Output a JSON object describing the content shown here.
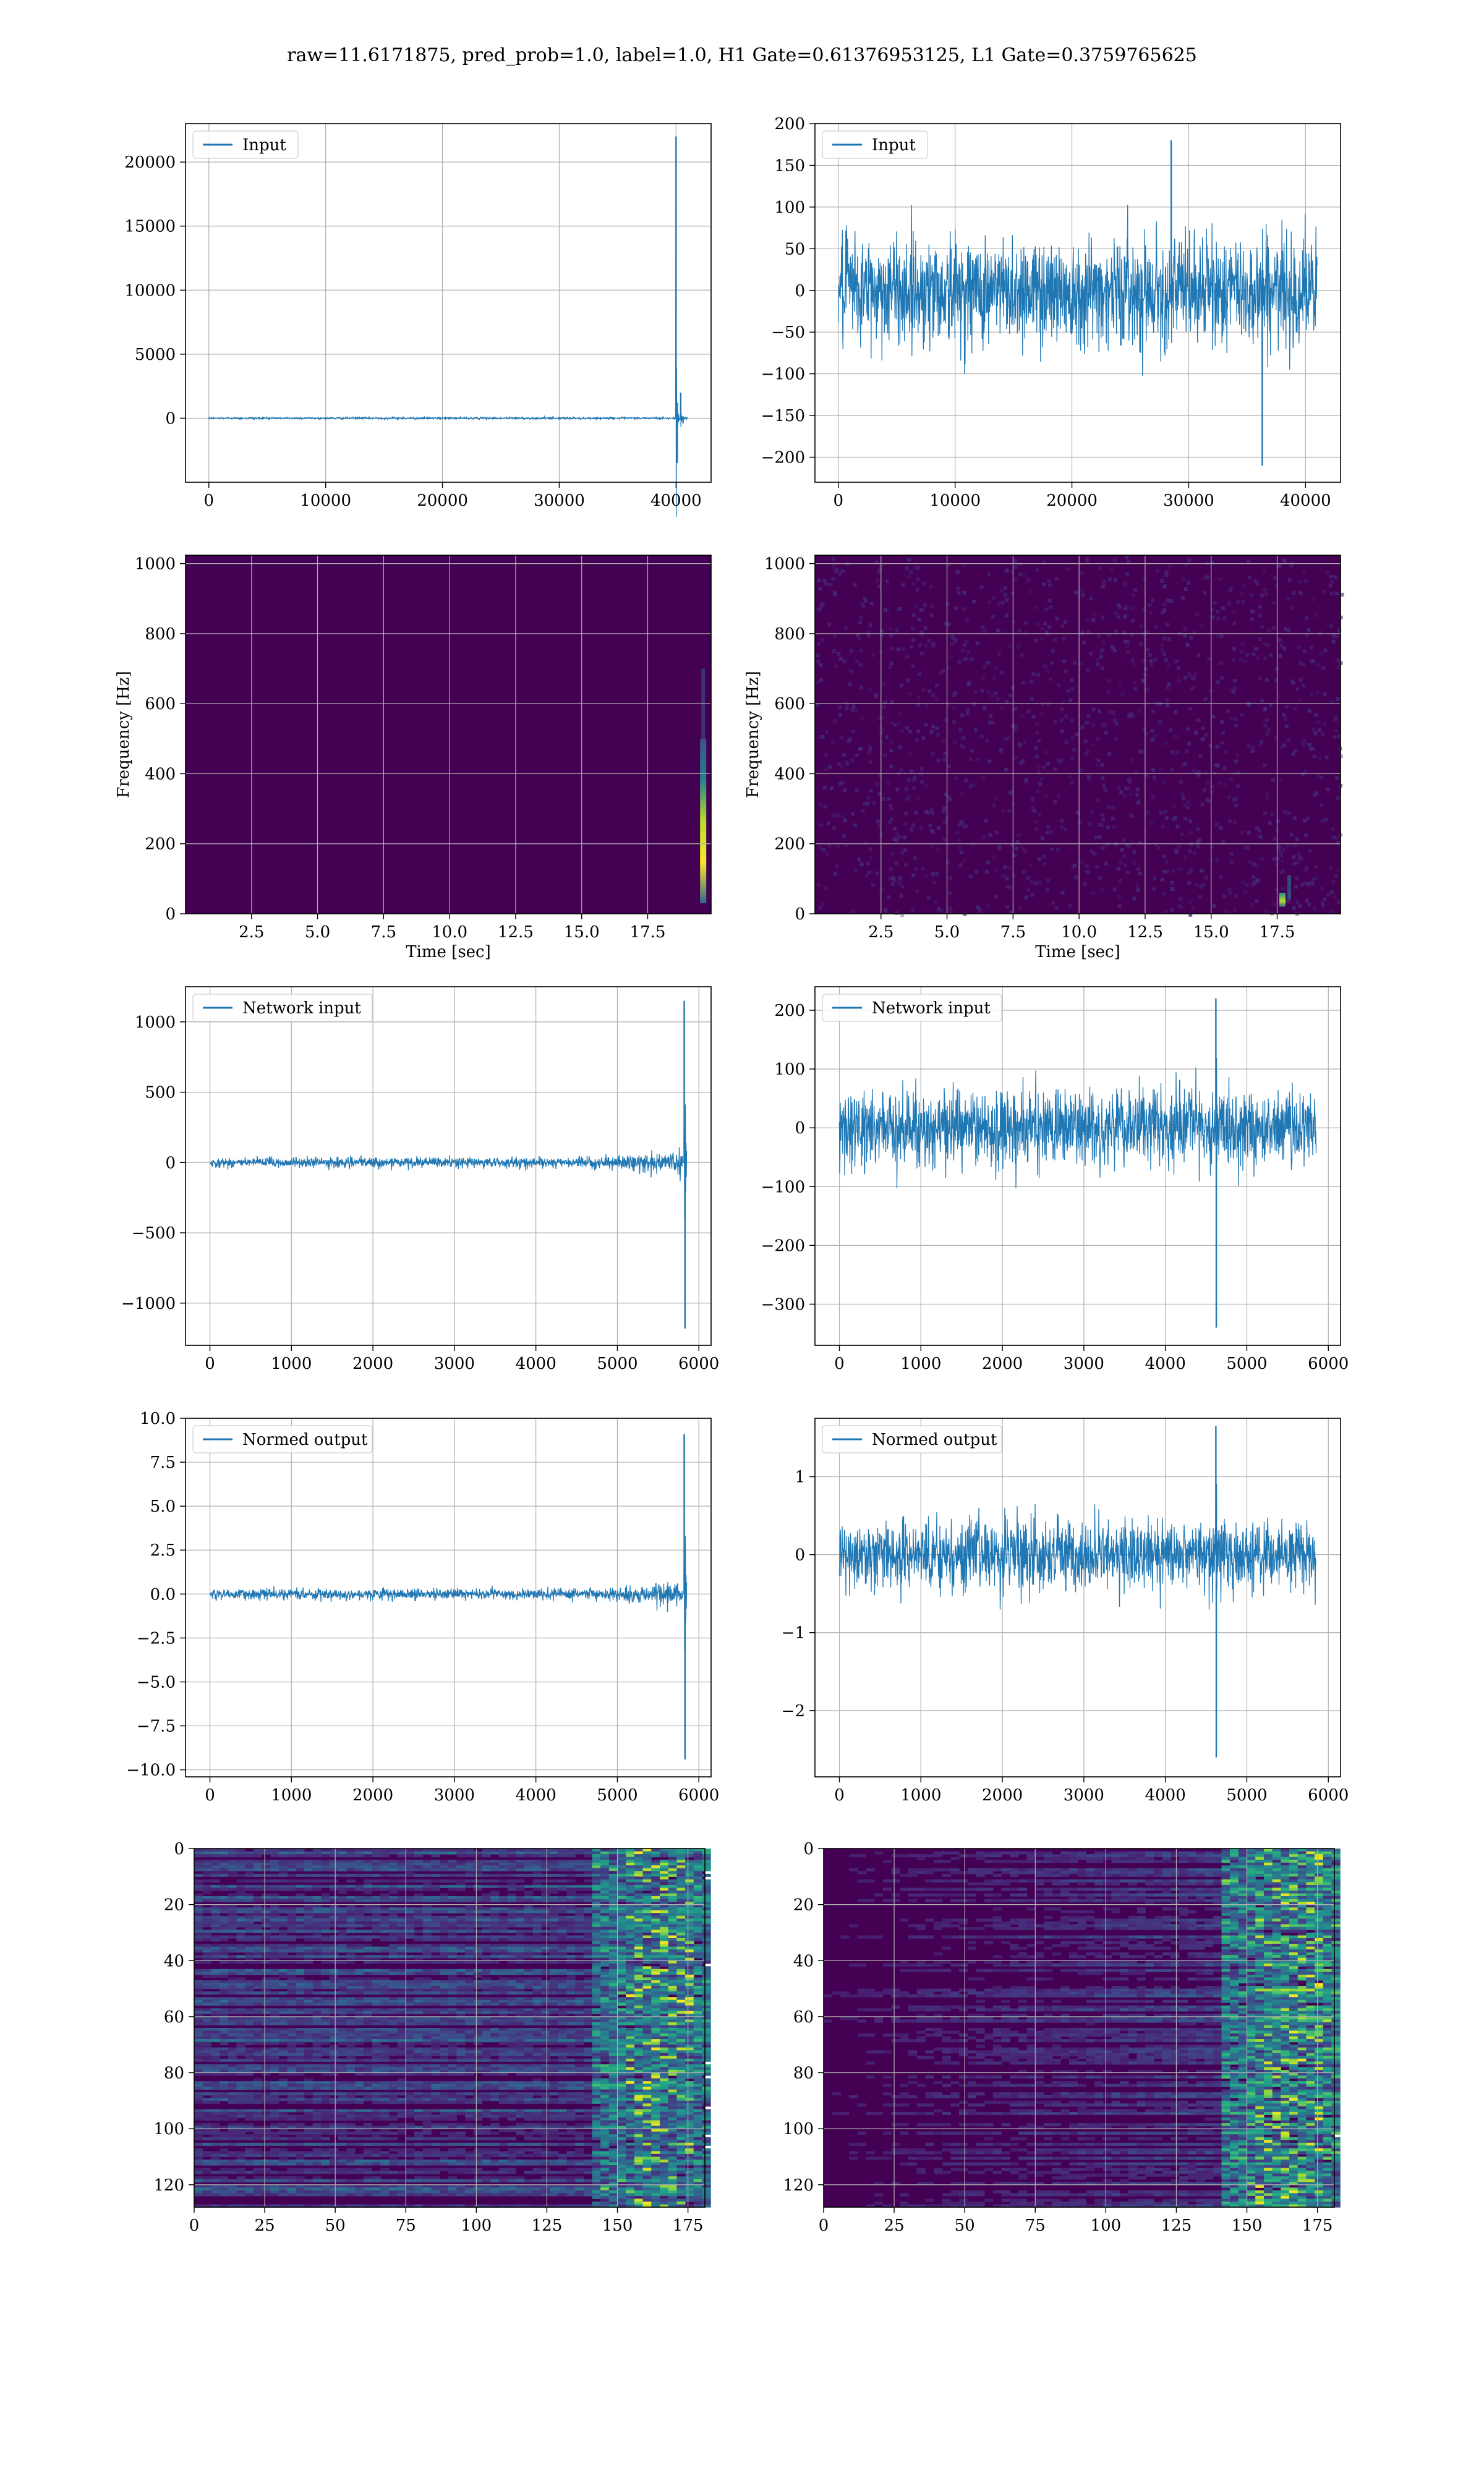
{
  "figure": {
    "title": "raw=11.6171875, pred_prob=1.0, label=1.0, H1 Gate=0.61376953125, L1 Gate=0.3759765625"
  },
  "colors": {
    "line": "#1f77b4",
    "viridis_dark": "#440154",
    "grid": "#b0b0b0"
  },
  "chart_data": [
    {
      "id": "h1-input",
      "type": "line",
      "legend": "Input",
      "xlim": [
        -2000,
        43000
      ],
      "ylim": [
        -5000,
        23000
      ],
      "xticks": [
        0,
        10000,
        20000,
        30000,
        40000
      ],
      "yticks": [
        0,
        5000,
        10000,
        15000,
        20000
      ],
      "series": [
        {
          "name": "Input",
          "x": [
            0,
            39500,
            40000,
            40100,
            40400,
            40600,
            41000
          ],
          "y": [
            0,
            0,
            22000,
            -3500,
            2000,
            -400,
            0
          ]
        }
      ]
    },
    {
      "id": "l1-input",
      "type": "line",
      "legend": "Input",
      "xlim": [
        -2000,
        43000
      ],
      "ylim": [
        -230,
        200
      ],
      "xticks": [
        0,
        10000,
        20000,
        30000,
        40000
      ],
      "yticks": [
        -200,
        -150,
        -100,
        -50,
        0,
        50,
        100,
        150,
        200
      ],
      "series": [
        {
          "name": "Input",
          "x": [
            0,
            28500,
            36300,
            41000
          ],
          "y": [
            0,
            180,
            -210,
            0
          ]
        }
      ]
    },
    {
      "id": "h1-spectrogram",
      "type": "heatmap",
      "xlabel": "Time [sec]",
      "ylabel": "Frequency [Hz]",
      "xlim": [
        0,
        19.9
      ],
      "ylim": [
        0,
        1024
      ],
      "xticks": [
        2.5,
        5.0,
        7.5,
        10.0,
        12.5,
        15.0,
        17.5
      ],
      "yticks": [
        0,
        200,
        400,
        600,
        800,
        1000
      ],
      "hot_spot": {
        "time": 19.6,
        "freq_range": [
          30,
          500
        ]
      }
    },
    {
      "id": "l1-spectrogram",
      "type": "heatmap",
      "xlabel": "Time [sec]",
      "ylabel": "Frequency [Hz]",
      "xlim": [
        0,
        19.9
      ],
      "ylim": [
        0,
        1024
      ],
      "xticks": [
        2.5,
        5.0,
        7.5,
        10.0,
        12.5,
        15.0,
        17.5
      ],
      "yticks": [
        0,
        200,
        400,
        600,
        800,
        1000
      ],
      "hot_spot": {
        "time": 17.7,
        "freq_range": [
          20,
          60
        ]
      }
    },
    {
      "id": "h1-network-input",
      "type": "line",
      "legend": "Network input",
      "xlim": [
        -300,
        6150
      ],
      "ylim": [
        -1300,
        1250
      ],
      "xticks": [
        0,
        1000,
        2000,
        3000,
        4000,
        5000,
        6000
      ],
      "yticks": [
        -1000,
        -500,
        0,
        500,
        1000
      ],
      "series": [
        {
          "name": "Network input",
          "x": [
            0,
            5800,
            5820,
            5830,
            5850
          ],
          "y": [
            0,
            0,
            1150,
            -1180,
            0
          ]
        }
      ]
    },
    {
      "id": "l1-network-input",
      "type": "line",
      "legend": "Network input",
      "xlim": [
        -300,
        6150
      ],
      "ylim": [
        -370,
        240
      ],
      "xticks": [
        0,
        1000,
        2000,
        3000,
        4000,
        5000,
        6000
      ],
      "yticks": [
        -300,
        -200,
        -100,
        0,
        100,
        200
      ],
      "series": [
        {
          "name": "Network input",
          "x": [
            0,
            4620,
            4625,
            5850
          ],
          "y": [
            0,
            220,
            -340,
            0
          ]
        }
      ]
    },
    {
      "id": "h1-normed-output",
      "type": "line",
      "legend": "Normed output",
      "xlim": [
        -300,
        6150
      ],
      "ylim": [
        -10.4,
        10.0
      ],
      "xticks": [
        0,
        1000,
        2000,
        3000,
        4000,
        5000,
        6000
      ],
      "yticks": [
        -10.0,
        -7.5,
        -5.0,
        -2.5,
        0.0,
        2.5,
        5.0,
        7.5,
        10.0
      ],
      "series": [
        {
          "name": "Normed output",
          "x": [
            0,
            5800,
            5820,
            5830,
            5850
          ],
          "y": [
            0,
            0,
            9.1,
            -9.4,
            0
          ]
        }
      ]
    },
    {
      "id": "l1-normed-output",
      "type": "line",
      "legend": "Normed output",
      "xlim": [
        -300,
        6150
      ],
      "ylim": [
        -2.85,
        1.75
      ],
      "xticks": [
        0,
        1000,
        2000,
        3000,
        4000,
        5000,
        6000
      ],
      "yticks": [
        -2,
        -1,
        0,
        1
      ],
      "series": [
        {
          "name": "Normed output",
          "x": [
            0,
            4620,
            4625,
            5850
          ],
          "y": [
            0,
            1.65,
            -2.6,
            0
          ]
        }
      ]
    },
    {
      "id": "h1-feature-map",
      "type": "heatmap",
      "xlim": [
        0,
        181
      ],
      "ylim": [
        128,
        0
      ],
      "xticks": [
        0,
        25,
        50,
        75,
        100,
        125,
        150,
        175
      ],
      "yticks": [
        0,
        20,
        40,
        60,
        80,
        100,
        120
      ]
    },
    {
      "id": "l1-feature-map",
      "type": "heatmap",
      "xlim": [
        0,
        181
      ],
      "ylim": [
        128,
        0
      ],
      "xticks": [
        0,
        25,
        50,
        75,
        100,
        125,
        150,
        175
      ],
      "yticks": [
        0,
        20,
        40,
        60,
        80,
        100,
        120
      ]
    }
  ]
}
